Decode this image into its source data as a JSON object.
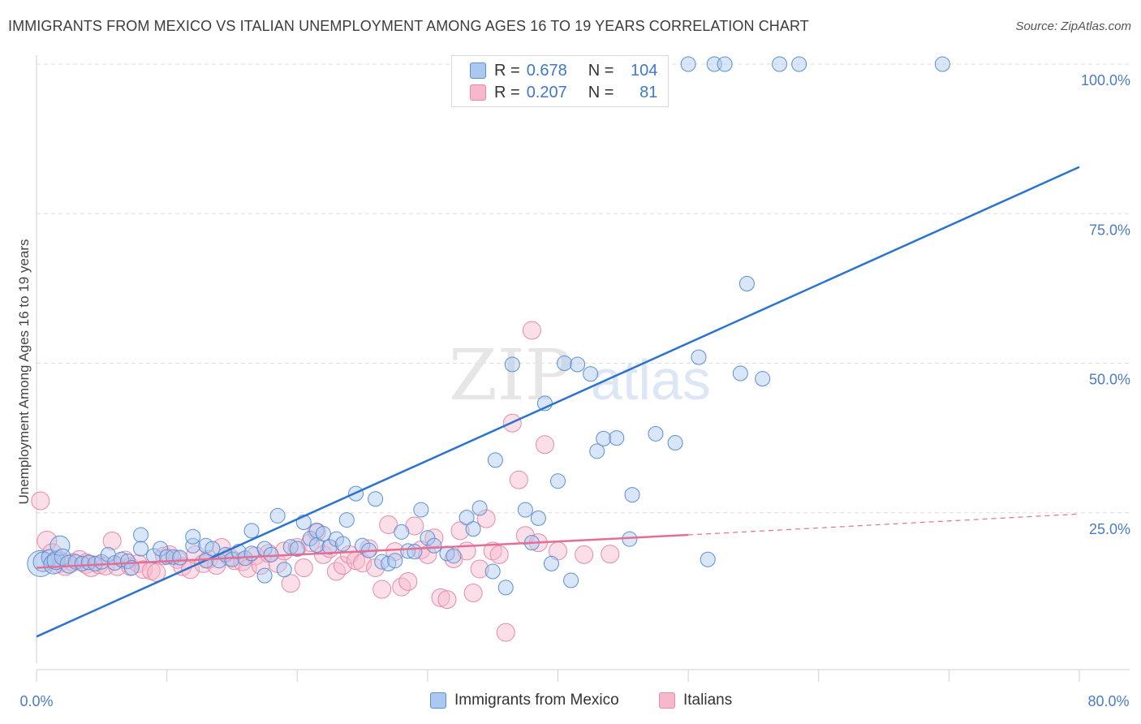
{
  "header": {
    "title": "IMMIGRANTS FROM MEXICO VS ITALIAN UNEMPLOYMENT AMONG AGES 16 TO 19 YEARS CORRELATION CHART",
    "source": "Source: ZipAtlas.com"
  },
  "legend": {
    "rows": [
      {
        "r_label": "R =",
        "r_value": "0.678",
        "n_label": "N =",
        "n_value": "104"
      },
      {
        "r_label": "R =",
        "r_value": "0.207",
        "n_label": "N =",
        "n_value": "81"
      }
    ]
  },
  "bottom_legend": {
    "mexico": "Immigrants from Mexico",
    "italians": "Italians"
  },
  "colors": {
    "blue_fill": "#aac8f0",
    "blue_stroke": "#5b8fd4",
    "blue_line": "#2b73cc",
    "pink_fill": "#f7b8cb",
    "pink_stroke": "#e98aa6",
    "pink_line": "#e56e94",
    "tick_text": "#4a7cc4",
    "grid": "#dddddd"
  },
  "chart_data": {
    "type": "scatter",
    "title": "IMMIGRANTS FROM MEXICO VS ITALIAN UNEMPLOYMENT AMONG AGES 16 TO 19 YEARS CORRELATION CHART",
    "xlabel": "",
    "ylabel": "Unemployment Among Ages 16 to 19 years",
    "xlim": [
      0,
      80
    ],
    "ylim": [
      0,
      100
    ],
    "x_tick_labels": [
      "0.0%",
      "80.0%"
    ],
    "y_tick_labels": [
      "100.0%",
      "75.0%",
      "50.0%",
      "25.0%"
    ],
    "y_ticks": [
      100,
      75,
      50,
      25
    ],
    "grid": true,
    "legend_position": "top-center",
    "watermark": "ZIPatlas",
    "series": [
      {
        "name": "Immigrants from Mexico",
        "color": "#5b8fd4",
        "trend": {
          "x": [
            0,
            80
          ],
          "y": [
            4.3,
            82.8
          ]
        },
        "points": [
          [
            0.3,
            16.5,
            16
          ],
          [
            0.5,
            16.8,
            12
          ],
          [
            1.0,
            17.5,
            10
          ],
          [
            1.3,
            16.4,
            12
          ],
          [
            1.5,
            17.0,
            11
          ],
          [
            1.8,
            19.5,
            12
          ],
          [
            2.0,
            17.6,
            10
          ],
          [
            2.5,
            16.4,
            11
          ],
          [
            3.0,
            16.8,
            9
          ],
          [
            3.5,
            16.5,
            9
          ],
          [
            4.0,
            16.7,
            9
          ],
          [
            4.5,
            16.5,
            9
          ],
          [
            5.0,
            16.8,
            9
          ],
          [
            5.5,
            18.0,
            9
          ],
          [
            6.0,
            16.6,
            9
          ],
          [
            6.5,
            17.2,
            9
          ],
          [
            7.0,
            16.9,
            9
          ],
          [
            7.3,
            15.8,
            9
          ],
          [
            8.0,
            21.3,
            9
          ],
          [
            8.0,
            19.0,
            9
          ],
          [
            9.0,
            17.8,
            9
          ],
          [
            9.5,
            19.0,
            9
          ],
          [
            10.0,
            17.6,
            9
          ],
          [
            10.5,
            17.6,
            9
          ],
          [
            11.0,
            17.5,
            9
          ],
          [
            12.0,
            19.5,
            9
          ],
          [
            12.0,
            21.0,
            9
          ],
          [
            13.0,
            19.5,
            9
          ],
          [
            13.0,
            17.0,
            9
          ],
          [
            13.5,
            19.0,
            9
          ],
          [
            14.0,
            17.0,
            9
          ],
          [
            14.5,
            18.0,
            9
          ],
          [
            15.0,
            17.2,
            9
          ],
          [
            15.5,
            18.5,
            9
          ],
          [
            16.0,
            17.4,
            9
          ],
          [
            16.5,
            18.2,
            9
          ],
          [
            16.5,
            22.0,
            9
          ],
          [
            17.5,
            19.0,
            9
          ],
          [
            17.5,
            14.5,
            9
          ],
          [
            18.0,
            18.0,
            9
          ],
          [
            18.5,
            24.5,
            9
          ],
          [
            19.0,
            15.5,
            9
          ],
          [
            19.5,
            19.3,
            9
          ],
          [
            20.0,
            19.0,
            9
          ],
          [
            20.5,
            23.4,
            9
          ],
          [
            21.0,
            20.7,
            9
          ],
          [
            21.5,
            22.0,
            9
          ],
          [
            21.5,
            19.6,
            9
          ],
          [
            22.0,
            21.5,
            9
          ],
          [
            22.5,
            19.3,
            9
          ],
          [
            23.0,
            20.6,
            9
          ],
          [
            23.5,
            19.8,
            9
          ],
          [
            23.8,
            23.8,
            9
          ],
          [
            24.5,
            28.2,
            9
          ],
          [
            25.0,
            19.5,
            9
          ],
          [
            25.5,
            18.7,
            9
          ],
          [
            26.0,
            27.3,
            9
          ],
          [
            26.5,
            16.8,
            9
          ],
          [
            27.0,
            16.5,
            9
          ],
          [
            27.5,
            17.0,
            9
          ],
          [
            28.0,
            21.8,
            9
          ],
          [
            28.5,
            18.6,
            9
          ],
          [
            29.0,
            18.5,
            9
          ],
          [
            29.5,
            25.5,
            9
          ],
          [
            30.0,
            20.8,
            9
          ],
          [
            30.5,
            19.5,
            9
          ],
          [
            31.5,
            18.2,
            9
          ],
          [
            32.0,
            17.8,
            9
          ],
          [
            33.0,
            24.2,
            9
          ],
          [
            33.5,
            22.3,
            9
          ],
          [
            34.0,
            25.8,
            9
          ],
          [
            35.0,
            15.2,
            9
          ],
          [
            35.2,
            33.8,
            9
          ],
          [
            36.0,
            12.5,
            9
          ],
          [
            36.5,
            49.8,
            9
          ],
          [
            37.5,
            25.5,
            9
          ],
          [
            38.0,
            20.0,
            9
          ],
          [
            38.5,
            24.1,
            9
          ],
          [
            39.0,
            43.3,
            9
          ],
          [
            39.5,
            16.5,
            9
          ],
          [
            40.0,
            30.3,
            9
          ],
          [
            40.5,
            50.0,
            9
          ],
          [
            41.0,
            13.7,
            9
          ],
          [
            41.5,
            49.8,
            9
          ],
          [
            42.5,
            48.2,
            9
          ],
          [
            43.0,
            35.3,
            9
          ],
          [
            43.5,
            37.4,
            9
          ],
          [
            44.5,
            37.5,
            9
          ],
          [
            45.5,
            20.6,
            9
          ],
          [
            45.7,
            28.0,
            9
          ],
          [
            47.5,
            38.2,
            9
          ],
          [
            49.0,
            36.7,
            9
          ],
          [
            50.0,
            100,
            9
          ],
          [
            50.8,
            51.0,
            9
          ],
          [
            51.5,
            17.2,
            9
          ],
          [
            52.0,
            100,
            9
          ],
          [
            52.8,
            100,
            9
          ],
          [
            54.0,
            48.3,
            9
          ],
          [
            54.5,
            63.3,
            9
          ],
          [
            55.7,
            47.4,
            9
          ],
          [
            57.0,
            100,
            9
          ],
          [
            58.5,
            100,
            9
          ],
          [
            69.5,
            100,
            9
          ],
          [
            42.5,
            100,
            9
          ],
          [
            44.5,
            100,
            9
          ],
          [
            41.5,
            100,
            9
          ]
        ]
      },
      {
        "name": "Italians",
        "color": "#e98aa6",
        "trend": {
          "x": [
            0,
            50
          ],
          "y": [
            15.8,
            21.3
          ]
        },
        "trend_extension": {
          "x": [
            50,
            80
          ],
          "y": [
            21.3,
            24.8
          ]
        },
        "points": [
          [
            0.3,
            27.0,
            11
          ],
          [
            0.8,
            20.3,
            12
          ],
          [
            1.2,
            18.2,
            12
          ],
          [
            1.6,
            16.8,
            14
          ],
          [
            2.2,
            16.3,
            13
          ],
          [
            2.8,
            16.7,
            11
          ],
          [
            3.3,
            17.2,
            11
          ],
          [
            3.8,
            16.5,
            12
          ],
          [
            4.2,
            16.1,
            13
          ],
          [
            4.8,
            16.3,
            11
          ],
          [
            5.3,
            16.1,
            11
          ],
          [
            5.8,
            20.3,
            11
          ],
          [
            6.2,
            16.0,
            11
          ],
          [
            6.8,
            17.1,
            11
          ],
          [
            7.2,
            16.0,
            11
          ],
          [
            7.8,
            16.5,
            11
          ],
          [
            8.2,
            15.5,
            11
          ],
          [
            8.8,
            15.3,
            11
          ],
          [
            9.2,
            15.0,
            11
          ],
          [
            9.8,
            17.8,
            11
          ],
          [
            10.2,
            18.0,
            11
          ],
          [
            10.8,
            17.2,
            11
          ],
          [
            11.2,
            16.0,
            11
          ],
          [
            11.8,
            15.5,
            11
          ],
          [
            12.2,
            18.0,
            11
          ],
          [
            12.8,
            16.5,
            11
          ],
          [
            13.2,
            17.2,
            11
          ],
          [
            13.8,
            16.2,
            11
          ],
          [
            14.2,
            19.2,
            11
          ],
          [
            14.8,
            17.6,
            11
          ],
          [
            15.2,
            17.0,
            11
          ],
          [
            15.8,
            16.8,
            11
          ],
          [
            16.2,
            15.7,
            11
          ],
          [
            16.8,
            17.8,
            11
          ],
          [
            17.2,
            16.2,
            11
          ],
          [
            17.8,
            18.2,
            11
          ],
          [
            18.5,
            16.5,
            11
          ],
          [
            19.0,
            18.6,
            11
          ],
          [
            19.5,
            13.2,
            11
          ],
          [
            20.0,
            19.2,
            11
          ],
          [
            20.5,
            15.8,
            11
          ],
          [
            21.0,
            20.0,
            11
          ],
          [
            21.5,
            21.8,
            11
          ],
          [
            22.0,
            18.0,
            11
          ],
          [
            22.5,
            19.0,
            11
          ],
          [
            23.0,
            15.2,
            11
          ],
          [
            23.5,
            16.2,
            11
          ],
          [
            24.0,
            18.0,
            11
          ],
          [
            24.5,
            17.0,
            11
          ],
          [
            25.0,
            16.6,
            11
          ],
          [
            25.5,
            19.0,
            11
          ],
          [
            26.0,
            15.8,
            11
          ],
          [
            26.5,
            12.2,
            11
          ],
          [
            27.0,
            23.0,
            11
          ],
          [
            27.5,
            18.5,
            11
          ],
          [
            28.0,
            12.6,
            11
          ],
          [
            28.5,
            13.5,
            11
          ],
          [
            29.0,
            22.8,
            11
          ],
          [
            29.5,
            18.8,
            11
          ],
          [
            30.0,
            18.0,
            11
          ],
          [
            30.5,
            20.8,
            11
          ],
          [
            31.0,
            10.8,
            11
          ],
          [
            31.5,
            10.5,
            11
          ],
          [
            32.0,
            17.3,
            11
          ],
          [
            32.5,
            22.0,
            11
          ],
          [
            33.0,
            18.6,
            11
          ],
          [
            33.5,
            11.6,
            11
          ],
          [
            34.0,
            15.6,
            11
          ],
          [
            34.5,
            24.0,
            11
          ],
          [
            35.0,
            18.6,
            11
          ],
          [
            35.5,
            18.0,
            11
          ],
          [
            36.0,
            5.0,
            11
          ],
          [
            36.5,
            40.0,
            11
          ],
          [
            37.0,
            30.5,
            11
          ],
          [
            37.5,
            21.2,
            11
          ],
          [
            38.0,
            55.5,
            11
          ],
          [
            38.5,
            20.0,
            11
          ],
          [
            39.0,
            36.4,
            11
          ],
          [
            40.0,
            18.6,
            11
          ],
          [
            42.0,
            18.0,
            11
          ],
          [
            44.0,
            18.1,
            11
          ]
        ]
      }
    ]
  }
}
